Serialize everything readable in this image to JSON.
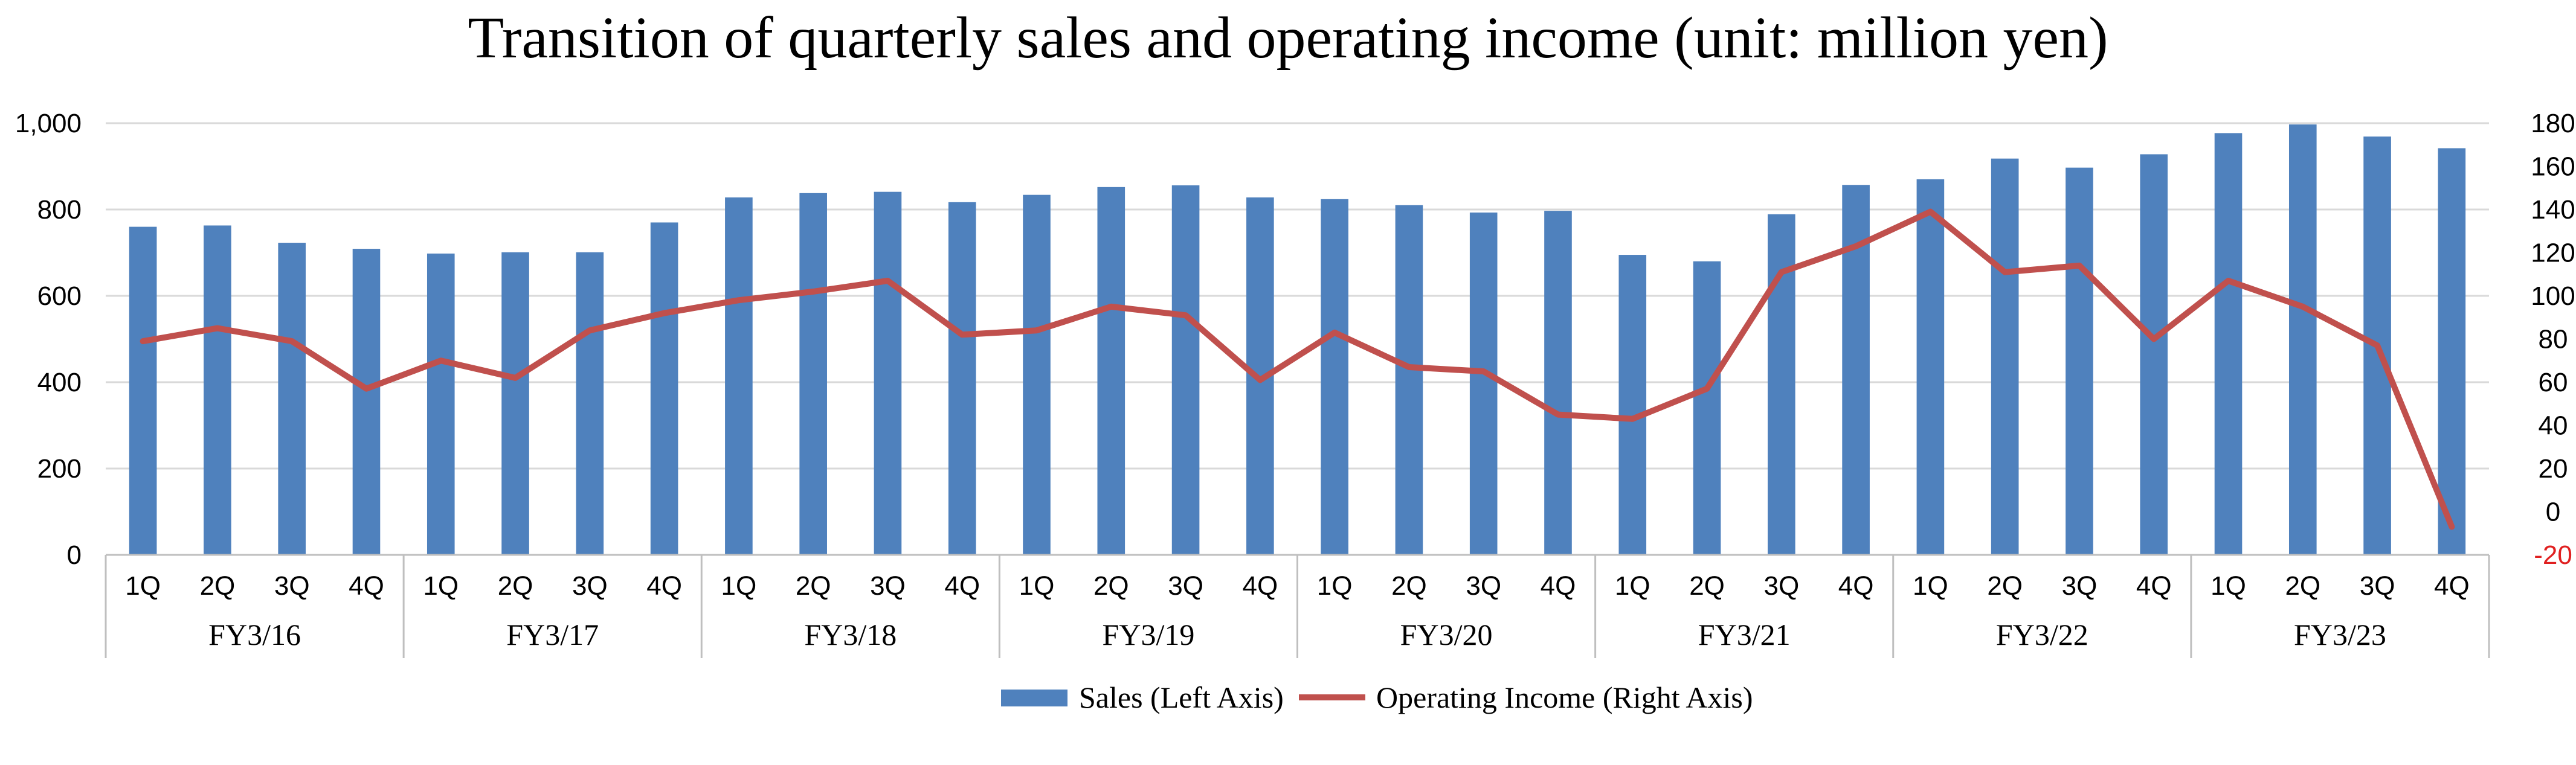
{
  "chart_data": {
    "type": "bar+line",
    "title": "Transition of quarterly sales and operating income (unit: million yen)",
    "fiscal_years": [
      "FY3/16",
      "FY3/17",
      "FY3/18",
      "FY3/19",
      "FY3/20",
      "FY3/21",
      "FY3/22",
      "FY3/23"
    ],
    "quarters": [
      "1Q",
      "2Q",
      "3Q",
      "4Q"
    ],
    "y_left": {
      "min": 0,
      "max": 1000,
      "step": 200,
      "ticks": [
        "0",
        "200",
        "400",
        "600",
        "800",
        "1,000"
      ]
    },
    "y_right": {
      "min": -20,
      "max": 180,
      "step": 20,
      "ticks": [
        "-20",
        "0",
        "20",
        "40",
        "60",
        "80",
        "100",
        "120",
        "140",
        "160",
        "180"
      ]
    },
    "series": [
      {
        "name": "Sales (Left Axis)",
        "type": "bar",
        "axis": "left",
        "color": "#4f81bd",
        "values": [
          760,
          763,
          723,
          709,
          698,
          701,
          701,
          770,
          828,
          838,
          841,
          817,
          834,
          852,
          856,
          828,
          824,
          810,
          793,
          797,
          695,
          680,
          789,
          857,
          870,
          918,
          897,
          928,
          977,
          997,
          969,
          942
        ]
      },
      {
        "name": "Operating Income (Right Axis)",
        "type": "line",
        "axis": "right",
        "color": "#c0504d",
        "values": [
          79,
          85,
          79,
          57,
          70,
          62,
          84,
          92,
          98,
          102,
          107,
          82,
          84,
          95,
          91,
          61,
          83,
          67,
          65,
          45,
          43,
          57,
          111,
          123,
          139,
          111,
          114,
          80,
          107,
          95,
          77,
          -7
        ]
      }
    ],
    "legend": {
      "position": "bottom"
    },
    "grid": true
  }
}
